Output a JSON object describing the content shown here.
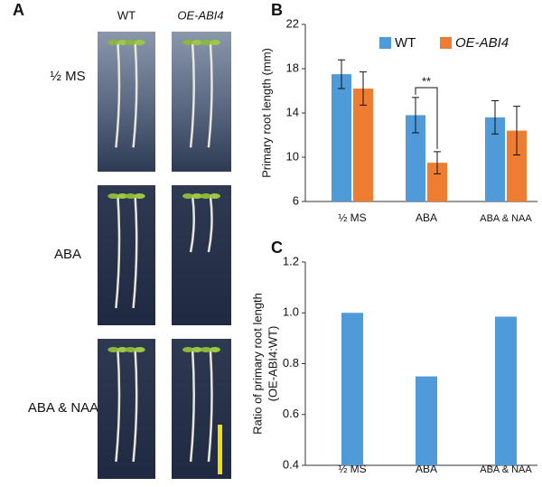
{
  "panel_a": {
    "letter": "A",
    "columns": [
      "WT",
      "OE-ABI4"
    ],
    "rows": [
      "½ MS",
      "ABA",
      "ABA & NAA"
    ]
  },
  "chart_data": [
    {
      "type": "bar",
      "letter": "B",
      "ylabel": "Primary root length (mm)",
      "categories": [
        "½ MS",
        "ABA",
        "ABA & NAA"
      ],
      "series": [
        {
          "name": "WT",
          "color": "#4f9ad8",
          "values": [
            17.5,
            13.8,
            13.6
          ],
          "errors": [
            1.3,
            1.6,
            1.5
          ]
        },
        {
          "name": "OE-ABI4",
          "color": "#ef7d31",
          "values": [
            16.2,
            9.5,
            12.4
          ],
          "errors": [
            1.5,
            1.0,
            2.2
          ]
        }
      ],
      "ylim": [
        6,
        22
      ],
      "yticks": [
        6,
        10,
        14,
        18,
        22
      ],
      "annotation": "**"
    },
    {
      "type": "bar",
      "letter": "C",
      "ylabel": [
        "Ratio of primary root length",
        "(OE-ABI4:WT)"
      ],
      "categories": [
        "½ MS",
        "ABA",
        "ABA & NAA"
      ],
      "values": [
        1.0,
        0.75,
        0.985
      ],
      "color": "#4f9ad8",
      "ylim": [
        0.4,
        1.2
      ],
      "yticks": [
        0.4,
        0.6,
        0.8,
        {
          "value": 1.0,
          "label": "1.0"
        },
        1.2
      ]
    }
  ]
}
